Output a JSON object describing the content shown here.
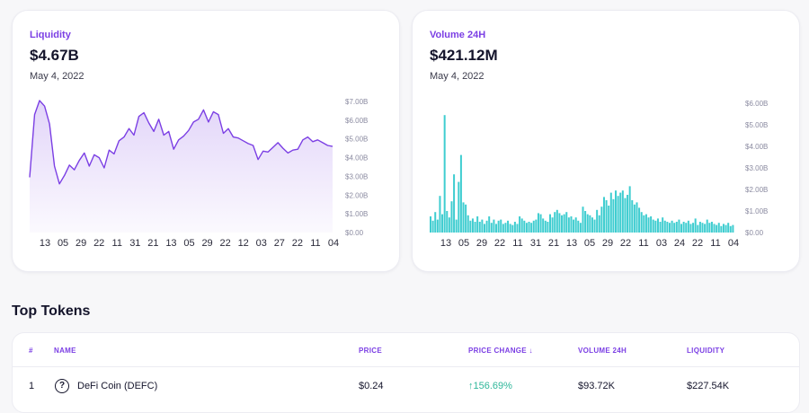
{
  "liquidity_card": {
    "label": "Liquidity",
    "value": "$4.67B",
    "date": "May 4, 2022",
    "color": "#7b3fe4",
    "y_ticks": [
      "$7.00B",
      "$6.00B",
      "$5.00B",
      "$4.00B",
      "$3.00B",
      "$2.00B",
      "$1.00B",
      "$0.00"
    ],
    "x_ticks": [
      "13",
      "05",
      "29",
      "22",
      "11",
      "31",
      "21",
      "13",
      "05",
      "29",
      "22",
      "12",
      "03",
      "27",
      "22",
      "11",
      "04"
    ]
  },
  "volume_card": {
    "label": "Volume 24H",
    "value": "$421.12M",
    "date": "May 4, 2022",
    "color": "#3fcdd0",
    "y_ticks": [
      "$6.00B",
      "$5.00B",
      "$4.00B",
      "$3.00B",
      "$2.00B",
      "$1.00B",
      "$0.00"
    ],
    "x_ticks": [
      "13",
      "05",
      "29",
      "22",
      "11",
      "31",
      "21",
      "13",
      "05",
      "29",
      "22",
      "11",
      "03",
      "24",
      "22",
      "11",
      "04"
    ]
  },
  "chart_data": [
    {
      "type": "area",
      "ylim": [
        0,
        7
      ],
      "values": [
        2.95,
        6.3,
        7.05,
        6.75,
        5.8,
        3.55,
        2.6,
        3.05,
        3.6,
        3.35,
        3.85,
        4.25,
        3.55,
        4.15,
        4.0,
        3.45,
        4.4,
        4.2,
        4.9,
        5.1,
        5.55,
        5.2,
        6.2,
        6.4,
        5.85,
        5.4,
        6.05,
        5.2,
        5.4,
        4.45,
        4.95,
        5.15,
        5.45,
        5.9,
        6.05,
        6.55,
        5.9,
        6.45,
        6.3,
        5.3,
        5.55,
        5.1,
        5.05,
        4.9,
        4.75,
        4.65,
        3.9,
        4.35,
        4.3,
        4.55,
        4.8,
        4.5,
        4.25,
        4.4,
        4.45,
        4.95,
        5.1,
        4.85,
        4.95,
        4.8,
        4.65,
        4.6
      ]
    },
    {
      "type": "bar",
      "ylim": [
        0,
        6
      ],
      "values": [
        0.75,
        0.55,
        0.95,
        0.6,
        1.7,
        0.85,
        5.45,
        1.0,
        0.7,
        1.45,
        2.7,
        0.6,
        2.35,
        3.6,
        1.4,
        1.3,
        0.8,
        0.55,
        0.65,
        0.5,
        0.75,
        0.5,
        0.6,
        0.4,
        0.55,
        0.75,
        0.45,
        0.6,
        0.4,
        0.55,
        0.6,
        0.4,
        0.45,
        0.55,
        0.4,
        0.35,
        0.5,
        0.4,
        0.75,
        0.65,
        0.55,
        0.45,
        0.5,
        0.45,
        0.55,
        0.6,
        0.9,
        0.85,
        0.65,
        0.55,
        0.5,
        0.85,
        0.7,
        0.95,
        1.05,
        0.9,
        0.8,
        0.85,
        0.95,
        0.7,
        0.75,
        0.6,
        0.7,
        0.55,
        0.45,
        1.2,
        1.0,
        0.85,
        0.8,
        0.7,
        0.6,
        1.05,
        0.8,
        1.2,
        1.65,
        1.5,
        1.25,
        1.85,
        1.55,
        1.95,
        1.7,
        1.85,
        1.95,
        1.6,
        1.75,
        2.15,
        1.5,
        1.3,
        1.4,
        1.15,
        0.95,
        0.8,
        0.85,
        0.7,
        0.75,
        0.6,
        0.55,
        0.65,
        0.5,
        0.7,
        0.55,
        0.5,
        0.45,
        0.55,
        0.45,
        0.5,
        0.6,
        0.4,
        0.5,
        0.45,
        0.55,
        0.4,
        0.45,
        0.65,
        0.35,
        0.5,
        0.45,
        0.4,
        0.6,
        0.45,
        0.5,
        0.4,
        0.35,
        0.45,
        0.3,
        0.4,
        0.35,
        0.45,
        0.3,
        0.35
      ]
    }
  ],
  "section_title": "Top Tokens",
  "table": {
    "headers": [
      "#",
      "NAME",
      "PRICE",
      "PRICE CHANGE ↓",
      "VOLUME 24H",
      "LIQUIDITY"
    ],
    "rows": [
      {
        "rank": "1",
        "icon": "question-circle-icon",
        "name": "DeFi Coin  (DEFC)",
        "price": "$0.24",
        "change": "↑156.69%",
        "volume": "$93.72K",
        "liquidity": "$227.54K"
      }
    ]
  }
}
